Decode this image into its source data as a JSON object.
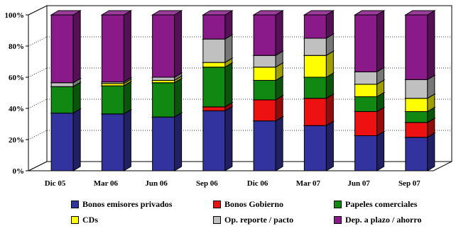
{
  "chart_data": {
    "type": "bar",
    "stacked": true,
    "three_d": true,
    "title": "",
    "xlabel": "",
    "ylabel": "",
    "ylim": [
      0,
      100
    ],
    "y_ticks": [
      "0%",
      "20%",
      "40%",
      "60%",
      "80%",
      "100%"
    ],
    "grid": true,
    "legend_position": "bottom",
    "categories": [
      "Dic 05",
      "Mar 06",
      "Jun 06",
      "Sep 06",
      "Dic 06",
      "Mar 07",
      "Jun 07",
      "Sep 07"
    ],
    "series": [
      {
        "name": "Bonos emisores privados",
        "color": "#3333a0",
        "values": [
          37,
          36.5,
          34.5,
          38.5,
          32,
          29,
          22.5,
          21.5
        ]
      },
      {
        "name": "Bonos Gobierno",
        "color": "#ee1111",
        "values": [
          0,
          0,
          0,
          2.5,
          13.5,
          17.5,
          15.5,
          9.5
        ]
      },
      {
        "name": "Papeles comerciales",
        "color": "#118811",
        "values": [
          17,
          18,
          22,
          25.5,
          12.5,
          13.5,
          9.5,
          7
        ]
      },
      {
        "name": "CDs",
        "color": "#ffff00",
        "values": [
          0,
          1.5,
          1.5,
          3,
          8.5,
          14,
          8,
          8.5
        ]
      },
      {
        "name": "Op. reporte / pacto",
        "color": "#c0c0c0",
        "values": [
          2.5,
          1,
          2,
          15,
          7.5,
          11,
          8,
          12
        ]
      },
      {
        "name": "Dep. a plazo / ahorro",
        "color": "#8a1a8a",
        "values": [
          43.5,
          43,
          40,
          15.5,
          26,
          15,
          36.5,
          41.5
        ]
      }
    ]
  }
}
